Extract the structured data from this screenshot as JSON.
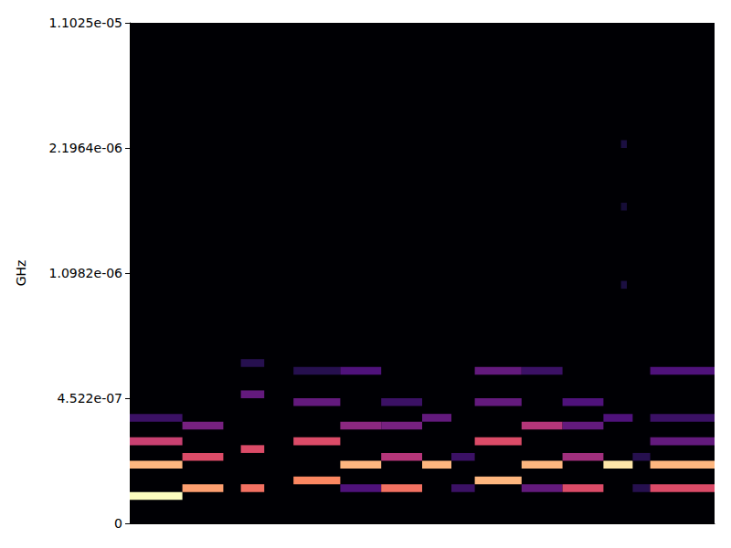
{
  "chart_data": {
    "type": "heatmap",
    "y_label": "GHz",
    "tick_labels": "y",
    "xlim": [
      0,
      100
    ],
    "ylim": [
      0,
      1.1025e-05
    ],
    "yticks": [
      0,
      {
        "value": 4.522e-07,
        "label": "4.522e-07"
      },
      {
        "value": 1.0982e-06,
        "label": "1.0982e-06"
      },
      {
        "value": 2.1964e-06,
        "label": "2.1964e-06"
      },
      {
        "value": 1.1025e-05,
        "label": "1.1025e-05"
      }
    ],
    "y_edges": [
      0,
      2.82625e-08,
      5.6525e-08,
      8.47875e-08,
      1.1305e-07,
      1.413125e-07,
      1.69575e-07,
      1.978375e-07,
      2.261e-07,
      2.543625e-07,
      2.82625e-07,
      3.108875e-07,
      3.3915e-07,
      3.674125e-07,
      3.95675e-07,
      4.239375e-07,
      4.522e-07,
      4.92575e-07,
      5.3295e-07,
      5.73325e-07,
      6.137e-07,
      6.54075e-07,
      6.9445e-07,
      7.34825e-07,
      7.752e-07,
      8.15575e-07,
      8.5595e-07,
      8.96325e-07,
      9.367e-07,
      9.77075e-07,
      1.01745e-06,
      1.057825e-06,
      1.0982e-06,
      1.1668375e-06,
      1.235475e-06,
      1.3041125e-06,
      1.37275e-06,
      1.4413875e-06,
      1.510025e-06,
      1.5786625e-06,
      1.6473e-06,
      1.7159375e-06,
      1.784575e-06,
      1.8532125e-06,
      1.92185e-06,
      1.9904875e-06,
      2.059125e-06,
      2.1277625e-06,
      2.1964e-06,
      2.7481875e-06,
      3.299975e-06,
      3.8517625e-06,
      4.40355e-06,
      4.9553375e-06,
      5.507125e-06,
      6.0589125e-06,
      6.6107e-06,
      7.1624875e-06,
      7.714275e-06,
      8.2660625e-06,
      8.81785e-06,
      9.3696375e-06,
      9.921425e-06,
      1.04732125e-05,
      1.1025e-05
    ],
    "color_range": [
      0,
      1
    ],
    "cells": [
      [
        0,
        9,
        3,
        1.0
      ],
      [
        0,
        9,
        7,
        0.85
      ],
      [
        0,
        9,
        10,
        0.55
      ],
      [
        0,
        9,
        13,
        0.2
      ],
      [
        9,
        16,
        4,
        0.8
      ],
      [
        9,
        16,
        8,
        0.6
      ],
      [
        9,
        16,
        12,
        0.35
      ],
      [
        19,
        23,
        4,
        0.7
      ],
      [
        19,
        23,
        9,
        0.6
      ],
      [
        19,
        23,
        16,
        0.3
      ],
      [
        19,
        23,
        20,
        0.15
      ],
      [
        28,
        36,
        5,
        0.75
      ],
      [
        28,
        36,
        10,
        0.6
      ],
      [
        28,
        36,
        15,
        0.3
      ],
      [
        28,
        36,
        19,
        0.15
      ],
      [
        36,
        43,
        7,
        0.85
      ],
      [
        36,
        43,
        4,
        0.25
      ],
      [
        36,
        43,
        12,
        0.4
      ],
      [
        36,
        43,
        19,
        0.25
      ],
      [
        43,
        50,
        4,
        0.7
      ],
      [
        43,
        50,
        8,
        0.5
      ],
      [
        43,
        50,
        12,
        0.35
      ],
      [
        43,
        50,
        15,
        0.2
      ],
      [
        50,
        55,
        7,
        0.85
      ],
      [
        50,
        55,
        13,
        0.3
      ],
      [
        55,
        59,
        4,
        0.2
      ],
      [
        55,
        59,
        8,
        0.2
      ],
      [
        59,
        67,
        5,
        0.85
      ],
      [
        59,
        67,
        10,
        0.6
      ],
      [
        59,
        67,
        15,
        0.3
      ],
      [
        59,
        67,
        19,
        0.3
      ],
      [
        67,
        74,
        7,
        0.85
      ],
      [
        67,
        74,
        4,
        0.3
      ],
      [
        67,
        74,
        12,
        0.5
      ],
      [
        67,
        74,
        19,
        0.2
      ],
      [
        74,
        81,
        4,
        0.6
      ],
      [
        74,
        81,
        8,
        0.45
      ],
      [
        74,
        81,
        12,
        0.3
      ],
      [
        74,
        81,
        15,
        0.25
      ],
      [
        81,
        86,
        7,
        0.95
      ],
      [
        81,
        86,
        13,
        0.25
      ],
      [
        86,
        89,
        4,
        0.15
      ],
      [
        86,
        89,
        8,
        0.15
      ],
      [
        89,
        100,
        7,
        0.85
      ],
      [
        89,
        100,
        4,
        0.6
      ],
      [
        89,
        100,
        10,
        0.3
      ],
      [
        89,
        100,
        13,
        0.2
      ],
      [
        89,
        100,
        19,
        0.25
      ],
      [
        84,
        85,
        30,
        0.12
      ],
      [
        84,
        85,
        40,
        0.1
      ],
      [
        84,
        85,
        48,
        0.12
      ]
    ]
  }
}
